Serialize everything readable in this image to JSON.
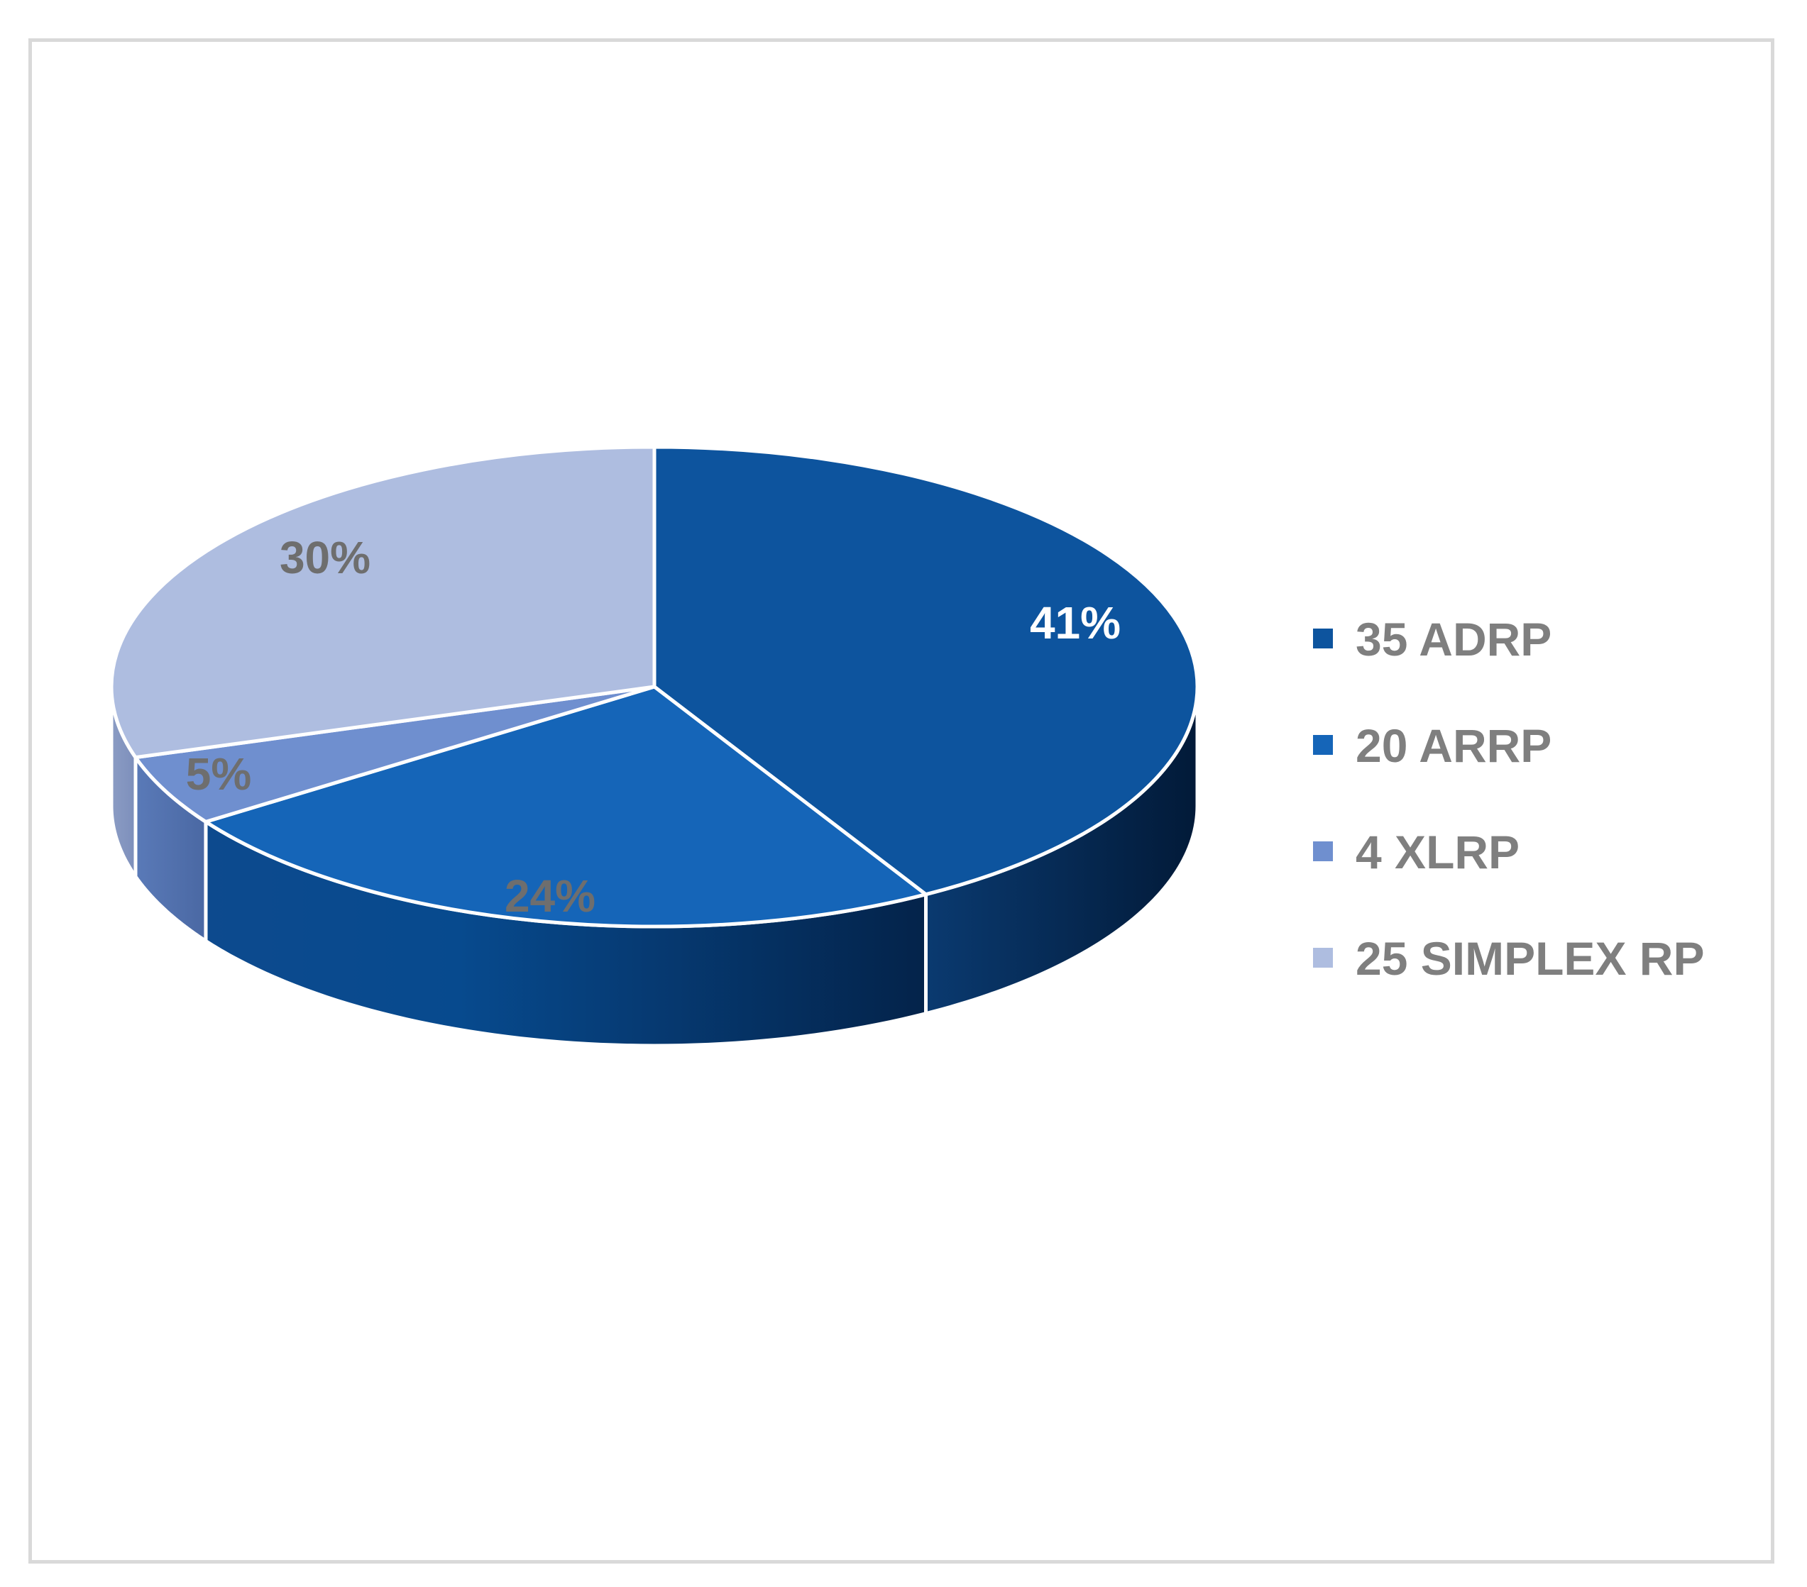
{
  "chart_data": {
    "type": "pie",
    "style": "3d",
    "categories": [
      "35 ADRP",
      "20 ARRP",
      "4 XLRP",
      "25 SIMPLEX RP"
    ],
    "values": [
      35,
      20,
      4,
      25
    ],
    "percent_labels": [
      "41%",
      "24%",
      "5%",
      "30%"
    ],
    "colors": [
      "#0d549e",
      "#1565b8",
      "#6f8fcf",
      "#aebde0"
    ],
    "label_colors": [
      "#ffffff",
      "#6e6e6e",
      "#6e6e6e",
      "#6e6e6e"
    ],
    "legend": {
      "placement": "right",
      "items": [
        "35 ADRP",
        "20 ARRP",
        "4 XLRP",
        "25 SIMPLEX RP"
      ]
    }
  }
}
